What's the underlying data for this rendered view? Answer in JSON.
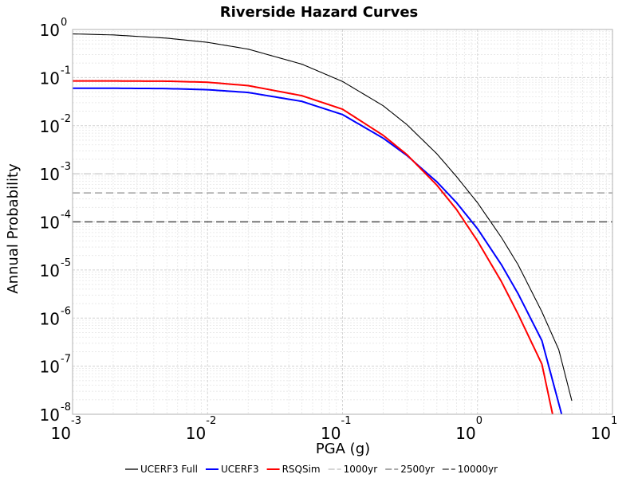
{
  "chart_data": {
    "type": "line",
    "title": "Riverside Hazard Curves",
    "xlabel": "PGA (g)",
    "ylabel": "Annual Probability",
    "x_scale": "log",
    "y_scale": "log",
    "xlim": [
      0.001,
      10
    ],
    "ylim": [
      1e-08,
      1
    ],
    "x_ticks": [
      {
        "base": "10",
        "exp": "-3",
        "value": 0.001
      },
      {
        "base": "10",
        "exp": "-2",
        "value": 0.01
      },
      {
        "base": "10",
        "exp": "-1",
        "value": 0.1
      },
      {
        "base": "10",
        "exp": "0",
        "value": 1
      },
      {
        "base": "10",
        "exp": "1",
        "value": 10
      }
    ],
    "y_ticks": [
      {
        "base": "10",
        "exp": "0",
        "value": 1
      },
      {
        "base": "10",
        "exp": "-1",
        "value": 0.1
      },
      {
        "base": "10",
        "exp": "-2",
        "value": 0.01
      },
      {
        "base": "10",
        "exp": "-3",
        "value": 0.001
      },
      {
        "base": "10",
        "exp": "-4",
        "value": 0.0001
      },
      {
        "base": "10",
        "exp": "-5",
        "value": 1e-05
      },
      {
        "base": "10",
        "exp": "-6",
        "value": 1e-06
      },
      {
        "base": "10",
        "exp": "-7",
        "value": 1e-07
      },
      {
        "base": "10",
        "exp": "-8",
        "value": 1e-08
      }
    ],
    "grid": true,
    "legend_position": "bottom",
    "series": [
      {
        "name": "UCERF3 Full",
        "color": "#000000",
        "style": "solid",
        "x": [
          0.001,
          0.002,
          0.005,
          0.01,
          0.02,
          0.05,
          0.1,
          0.2,
          0.3,
          0.5,
          0.7,
          1.0,
          1.5,
          2.0,
          3.0,
          4.0,
          5.0
        ],
        "y": [
          0.81,
          0.77,
          0.66,
          0.54,
          0.39,
          0.19,
          0.083,
          0.026,
          0.0105,
          0.0026,
          0.00087,
          0.00025,
          4.8e-05,
          1.28e-05,
          1.35e-06,
          2.2e-07,
          1.9e-08
        ]
      },
      {
        "name": "UCERF3",
        "color": "#0000ff",
        "style": "solid",
        "x": [
          0.001,
          0.002,
          0.005,
          0.01,
          0.02,
          0.05,
          0.1,
          0.2,
          0.3,
          0.5,
          0.7,
          1.0,
          1.5,
          2.0,
          3.0,
          4.2
        ],
        "y": [
          0.06,
          0.06,
          0.059,
          0.056,
          0.049,
          0.032,
          0.017,
          0.0055,
          0.0024,
          0.00068,
          0.00025,
          7.2e-05,
          1.3e-05,
          3.2e-06,
          3.4e-07,
          1e-08
        ]
      },
      {
        "name": "RSQSim",
        "color": "#ff0000",
        "style": "solid",
        "x": [
          0.001,
          0.002,
          0.005,
          0.01,
          0.02,
          0.05,
          0.1,
          0.2,
          0.3,
          0.5,
          0.7,
          1.0,
          1.5,
          2.0,
          3.0,
          3.6
        ],
        "y": [
          0.085,
          0.085,
          0.084,
          0.08,
          0.068,
          0.042,
          0.022,
          0.0063,
          0.0025,
          0.00058,
          0.00018,
          4e-05,
          5.8e-06,
          1.2e-06,
          1.1e-07,
          1e-08
        ]
      },
      {
        "name": "1000yr",
        "color": "#c8c8c8",
        "style": "dashed",
        "horizontal_value": 0.001
      },
      {
        "name": "2500yr",
        "color": "#8c8c8c",
        "style": "dashed",
        "horizontal_value": 0.0004
      },
      {
        "name": "10000yr",
        "color": "#505050",
        "style": "dashed",
        "horizontal_value": 0.0001
      }
    ]
  }
}
